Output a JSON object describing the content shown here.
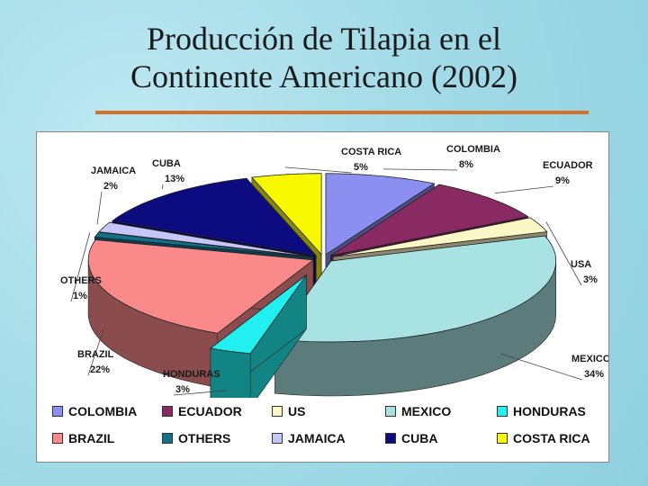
{
  "slide": {
    "title_line1": "Producción de Tilapia en el",
    "title_line2": "Continente Americano (2002)"
  },
  "chart_data": {
    "type": "pie",
    "title": "",
    "slices": [
      {
        "label": "COLOMBIA",
        "value": 8,
        "pct": "8%",
        "color": "#8b8ff0"
      },
      {
        "label": "ECUADOR",
        "value": 9,
        "pct": "9%",
        "color": "#8a2a62"
      },
      {
        "label": "USA",
        "value": 3,
        "pct": "3%",
        "color": "#fcf8c6"
      },
      {
        "label": "MEXICO",
        "value": 34,
        "pct": "34%",
        "color": "#a8e2e2"
      },
      {
        "label": "HONDURAS",
        "value": 3,
        "pct": "3%",
        "color": "#22f0f0"
      },
      {
        "label": "BRAZIL",
        "value": 22,
        "pct": "22%",
        "color": "#fa8a8a"
      },
      {
        "label": "OTHERS",
        "value": 1,
        "pct": "1%",
        "color": "#12708a"
      },
      {
        "label": "JAMAICA",
        "value": 2,
        "pct": "2%",
        "color": "#c6c6f8"
      },
      {
        "label": "CUBA",
        "value": 13,
        "pct": "13%",
        "color": "#0c0c80"
      },
      {
        "label": "COSTA RICA",
        "value": 5,
        "pct": "5%",
        "color": "#f8f800"
      }
    ],
    "legend": [
      {
        "label": "COLOMBIA",
        "color": "#8b8ff0"
      },
      {
        "label": "ECUADOR",
        "color": "#8a2a62"
      },
      {
        "label": "US",
        "color": "#fcf8c6"
      },
      {
        "label": "MEXICO",
        "color": "#a8e2e2"
      },
      {
        "label": "HONDURAS",
        "color": "#22f0f0"
      },
      {
        "label": "BRAZIL",
        "color": "#fa8a8a"
      },
      {
        "label": "OTHERS",
        "color": "#12708a"
      },
      {
        "label": "JAMAICA",
        "color": "#c6c6f8"
      },
      {
        "label": "CUBA",
        "color": "#0c0c80"
      },
      {
        "label": "COSTA RICA",
        "color": "#f8f800"
      }
    ],
    "legend_placement": "bottom",
    "style": "3d-exploded"
  },
  "colors": {
    "accent_rule": "#d4702a",
    "background": "#a6dde9"
  }
}
